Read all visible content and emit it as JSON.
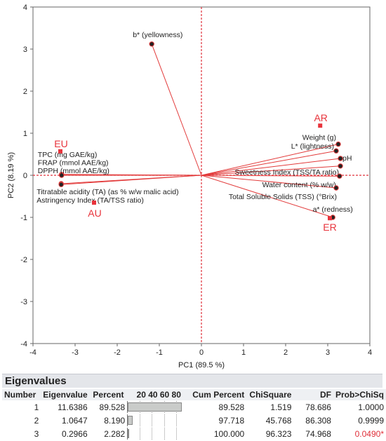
{
  "chart_data": {
    "type": "scatter",
    "xlabel": "PC1  (89.5 %)",
    "ylabel": "PC2  (8.19 %)",
    "xlim": [
      -4,
      4
    ],
    "ylim": [
      -4,
      4
    ],
    "xticks": [
      -4,
      -3,
      -2,
      -1,
      0,
      1,
      2,
      3,
      4
    ],
    "yticks": [
      -4,
      -3,
      -2,
      -1,
      0,
      1,
      2,
      3,
      4
    ],
    "loadings": [
      {
        "label": "b* (yellowness)",
        "x": -1.18,
        "y": 3.12
      },
      {
        "label": "Weight (g)",
        "x": 3.25,
        "y": 0.74
      },
      {
        "label": "L* (lightness)",
        "x": 3.2,
        "y": 0.58
      },
      {
        "label": "pH",
        "x": 3.3,
        "y": 0.4
      },
      {
        "label": "Sweetness Index (TSS/TA ratio)",
        "x": 3.3,
        "y": 0.22
      },
      {
        "label": "Water content (% w/w)",
        "x": 3.28,
        "y": -0.02
      },
      {
        "label": "Total Soluble Solids (TSS) (°Brix)",
        "x": 3.2,
        "y": -0.3
      },
      {
        "label": "a* (redness)",
        "x": 3.12,
        "y": -1.0
      },
      {
        "label": "TPC (mg GAE/kg)",
        "x": -3.32,
        "y": 0.02
      },
      {
        "label": "FRAP (mmol AAE/kg)",
        "x": -3.32,
        "y": 0.01
      },
      {
        "label": "DPPH (mmol AAE/kg)",
        "x": -3.32,
        "y": 0.0
      },
      {
        "label": "Titratable acidity (TA) (as % w/w malic acid)",
        "x": -3.33,
        "y": -0.2
      },
      {
        "label": "Astringency Index (TA/TSS ratio)",
        "x": -3.33,
        "y": -0.22
      }
    ],
    "scores": [
      {
        "label": "EU",
        "x": -3.35,
        "y": 0.57
      },
      {
        "label": "AU",
        "x": -2.55,
        "y": -0.65
      },
      {
        "label": "AR",
        "x": 2.82,
        "y": 1.18
      },
      {
        "label": "ER",
        "x": 3.05,
        "y": -1.02
      }
    ],
    "colors": {
      "loading": "#e23a3a",
      "score": "#e8343c",
      "axis_dashed": "#e0303a",
      "point_fill": "#222222"
    }
  },
  "eigenvalues": {
    "title": "Eigenvalues",
    "headers": {
      "number": "Number",
      "eigenvalue": "Eigenvalue",
      "percent": "Percent",
      "bar_ticks": "20 40 60 80",
      "cum_percent": "Cum Percent",
      "chisquare": "ChiSquare",
      "df": "DF",
      "prob": "Prob>ChiSq"
    },
    "rows": [
      {
        "number": "1",
        "eigenvalue": "11.6386",
        "percent": "89.528",
        "percent_value": 89.528,
        "cum_percent": "89.528",
        "chisquare": "1.519",
        "df": "78.686",
        "prob": "1.0000"
      },
      {
        "number": "2",
        "eigenvalue": "1.0647",
        "percent": "8.190",
        "percent_value": 8.19,
        "cum_percent": "97.718",
        "chisquare": "45.768",
        "df": "86.308",
        "prob": "0.9999"
      },
      {
        "number": "3",
        "eigenvalue": "0.2966",
        "percent": "2.282",
        "percent_value": 2.282,
        "cum_percent": "100.000",
        "chisquare": "96.323",
        "df": "74.968",
        "prob": "0.0490*"
      }
    ]
  }
}
